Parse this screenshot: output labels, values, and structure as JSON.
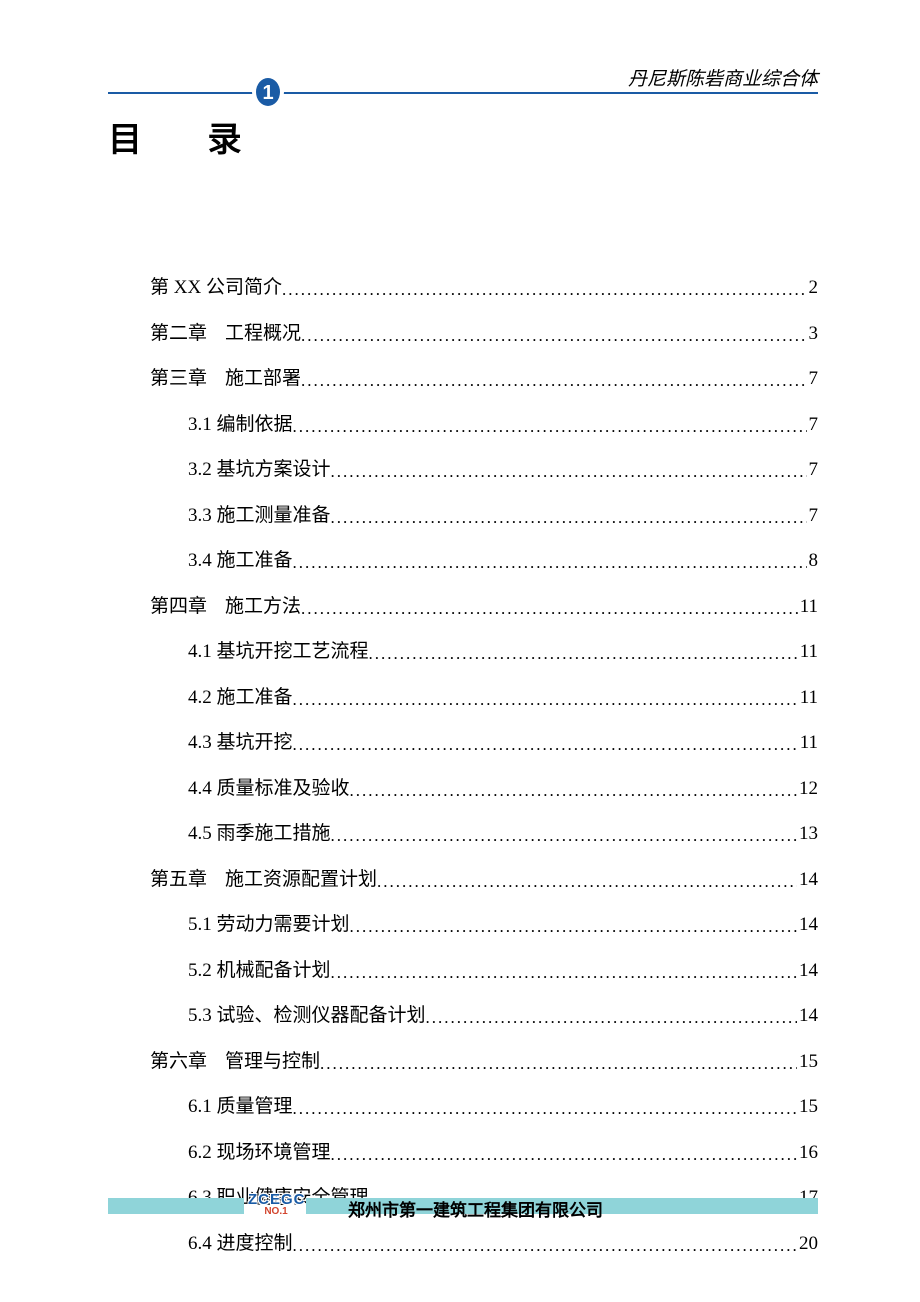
{
  "header": {
    "right_text": "丹尼斯陈砦商业综合体",
    "line_color": "#1a5ba5",
    "logo_fill": "#1a5ba5"
  },
  "title": "目 录",
  "toc": [
    {
      "level": 0,
      "label_pre": "第 XX 公司简介",
      "label_post": "",
      "page": "2"
    },
    {
      "level": 0,
      "label_pre": "第二章",
      "label_post": "工程概况",
      "page": "3"
    },
    {
      "level": 0,
      "label_pre": "第三章",
      "label_post": "施工部署",
      "page": "7"
    },
    {
      "level": 1,
      "label_pre": "3.1 编制依据",
      "label_post": "",
      "page": "7"
    },
    {
      "level": 1,
      "label_pre": "3.2 基坑方案设计",
      "label_post": "",
      "page": "7"
    },
    {
      "level": 1,
      "label_pre": "3.3 施工测量准备",
      "label_post": "",
      "page": "7"
    },
    {
      "level": 1,
      "label_pre": "3.4 施工准备",
      "label_post": "",
      "page": "8"
    },
    {
      "level": 0,
      "label_pre": "第四章",
      "label_post": "施工方法",
      "page": "11"
    },
    {
      "level": 1,
      "label_pre": "4.1 基坑开挖工艺流程",
      "label_post": "",
      "page": "11"
    },
    {
      "level": 1,
      "label_pre": "4.2 施工准备",
      "label_post": "",
      "page": "11"
    },
    {
      "level": 1,
      "label_pre": "4.3 基坑开挖",
      "label_post": "",
      "page": "11"
    },
    {
      "level": 1,
      "label_pre": "4.4 质量标准及验收",
      "label_post": "",
      "page": "12"
    },
    {
      "level": 1,
      "label_pre": "4.5 雨季施工措施",
      "label_post": "",
      "page": "13"
    },
    {
      "level": 0,
      "label_pre": "第五章",
      "label_post": "施工资源配置计划",
      "page": "14"
    },
    {
      "level": 1,
      "label_pre": "5.1 劳动力需要计划",
      "label_post": "",
      "page": "14"
    },
    {
      "level": 1,
      "label_pre": "5.2 机械配备计划",
      "label_post": "",
      "page": "14"
    },
    {
      "level": 1,
      "label_pre": "5.3 试验、检测仪器配备计划",
      "label_post": "",
      "page": "14"
    },
    {
      "level": 0,
      "label_pre": "第六章",
      "label_post": "管理与控制",
      "page": "15"
    },
    {
      "level": 1,
      "label_pre": "6.1 质量管理",
      "label_post": "",
      "page": "15"
    },
    {
      "level": 1,
      "label_pre": "6.2 现场环境管理",
      "label_post": "",
      "page": "16"
    },
    {
      "level": 1,
      "label_pre": "6.3 职业健康安全管理",
      "label_post": "",
      "page": "17"
    },
    {
      "level": 1,
      "label_pre": "6.4 进度控制",
      "label_post": "",
      "page": "20"
    }
  ],
  "footer": {
    "bar_color": "#8fd4d9",
    "logo_top": "ZCEGC",
    "logo_bottom": "NO.1",
    "text": "郑州市第一建筑工程集团有限公司"
  }
}
